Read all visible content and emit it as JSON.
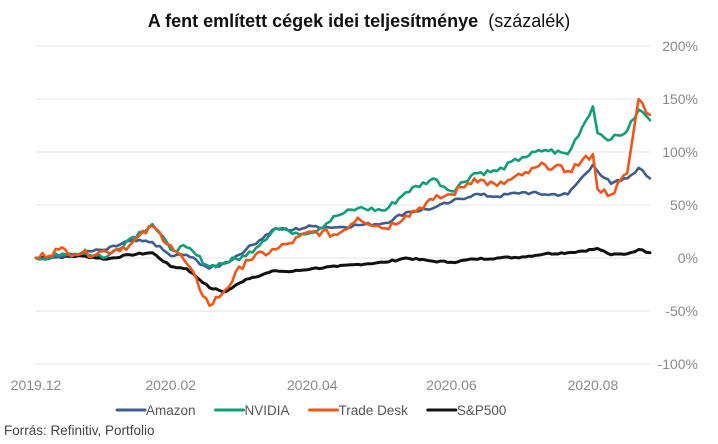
{
  "chart_data": {
    "type": "line",
    "title": "A fent említett cégek idei teljesítménye",
    "title_suffix": "(százalék)",
    "ylim": [
      -100,
      200
    ],
    "yticks": [
      200,
      150,
      100,
      50,
      0,
      -50,
      -100
    ],
    "ytick_labels": [
      "200%",
      "150%",
      "100%",
      "50%",
      "0%",
      "-50%",
      "-100%"
    ],
    "xlim": [
      "2019-12-31",
      "2020-09-25"
    ],
    "xticks": [
      "2019-12-31",
      "2020-02-28",
      "2020-04-30",
      "2020-06-30",
      "2020-08-31"
    ],
    "xtick_labels": [
      "2019.12",
      "2020.02",
      "2020.04",
      "2020.06",
      "2020.08"
    ],
    "grid": true,
    "legend_position": "bottom",
    "series": [
      {
        "name": "Amazon",
        "color": "#3e5c8c",
        "x": [
          "2019-12-31",
          "2020-01-10",
          "2020-01-20",
          "2020-01-31",
          "2020-02-10",
          "2020-02-20",
          "2020-02-28",
          "2020-03-06",
          "2020-03-16",
          "2020-03-23",
          "2020-04-01",
          "2020-04-14",
          "2020-04-20",
          "2020-04-30",
          "2020-05-11",
          "2020-05-20",
          "2020-06-01",
          "2020-06-10",
          "2020-06-22",
          "2020-06-30",
          "2020-07-10",
          "2020-07-20",
          "2020-07-31",
          "2020-08-10",
          "2020-08-20",
          "2020-08-31",
          "2020-09-02",
          "2020-09-08",
          "2020-09-15",
          "2020-09-20",
          "2020-09-25"
        ],
        "values": [
          0,
          1,
          5,
          8,
          16,
          15,
          2,
          3,
          -10,
          -5,
          8,
          28,
          26,
          30,
          29,
          31,
          33,
          43,
          47,
          53,
          60,
          58,
          62,
          60,
          60,
          88,
          82,
          70,
          75,
          85,
          75
        ]
      },
      {
        "name": "NVIDIA",
        "color": "#0f9e7b",
        "x": [
          "2019-12-31",
          "2020-01-10",
          "2020-01-20",
          "2020-01-31",
          "2020-02-10",
          "2020-02-20",
          "2020-02-28",
          "2020-03-06",
          "2020-03-16",
          "2020-03-23",
          "2020-04-01",
          "2020-04-14",
          "2020-04-20",
          "2020-04-30",
          "2020-05-11",
          "2020-05-20",
          "2020-06-01",
          "2020-06-10",
          "2020-06-22",
          "2020-06-30",
          "2020-07-10",
          "2020-07-20",
          "2020-07-31",
          "2020-08-10",
          "2020-08-20",
          "2020-08-31",
          "2020-09-02",
          "2020-09-08",
          "2020-09-15",
          "2020-09-20",
          "2020-09-25"
        ],
        "values": [
          0,
          2,
          5,
          1,
          18,
          32,
          8,
          10,
          -8,
          -4,
          2,
          28,
          25,
          24,
          40,
          47,
          45,
          62,
          75,
          63,
          80,
          82,
          95,
          102,
          98,
          143,
          118,
          112,
          120,
          140,
          130
        ]
      },
      {
        "name": "Trade Desk",
        "color": "#f0561a",
        "x": [
          "2019-12-31",
          "2020-01-10",
          "2020-01-20",
          "2020-01-31",
          "2020-02-10",
          "2020-02-20",
          "2020-02-28",
          "2020-03-06",
          "2020-03-16",
          "2020-03-23",
          "2020-04-01",
          "2020-04-14",
          "2020-04-20",
          "2020-04-30",
          "2020-05-11",
          "2020-05-20",
          "2020-06-01",
          "2020-06-10",
          "2020-06-22",
          "2020-06-30",
          "2020-07-10",
          "2020-07-20",
          "2020-07-31",
          "2020-08-10",
          "2020-08-20",
          "2020-08-31",
          "2020-09-02",
          "2020-09-08",
          "2020-09-15",
          "2020-09-20",
          "2020-09-25"
        ],
        "values": [
          0,
          8,
          4,
          6,
          12,
          30,
          12,
          -5,
          -45,
          -30,
          -2,
          8,
          14,
          25,
          22,
          38,
          28,
          40,
          55,
          60,
          75,
          68,
          78,
          88,
          82,
          98,
          65,
          60,
          80,
          150,
          135
        ]
      },
      {
        "name": "S&P500",
        "color": "#111111",
        "x": [
          "2019-12-31",
          "2020-01-10",
          "2020-01-20",
          "2020-01-31",
          "2020-02-10",
          "2020-02-20",
          "2020-02-28",
          "2020-03-06",
          "2020-03-16",
          "2020-03-23",
          "2020-04-01",
          "2020-04-14",
          "2020-04-20",
          "2020-04-30",
          "2020-05-11",
          "2020-05-20",
          "2020-06-01",
          "2020-06-10",
          "2020-06-22",
          "2020-06-30",
          "2020-07-10",
          "2020-07-20",
          "2020-07-31",
          "2020-08-10",
          "2020-08-20",
          "2020-08-31",
          "2020-09-02",
          "2020-09-08",
          "2020-09-15",
          "2020-09-20",
          "2020-09-25"
        ],
        "values": [
          0,
          1,
          2,
          -1,
          3,
          5,
          -8,
          -10,
          -28,
          -32,
          -20,
          -12,
          -13,
          -10,
          -8,
          -6,
          -4,
          0,
          -3,
          -4,
          -1,
          0,
          1,
          4,
          5,
          8,
          9,
          3,
          4,
          8,
          5
        ]
      }
    ]
  },
  "source": "Forrás: Refinitiv, Portfolio"
}
